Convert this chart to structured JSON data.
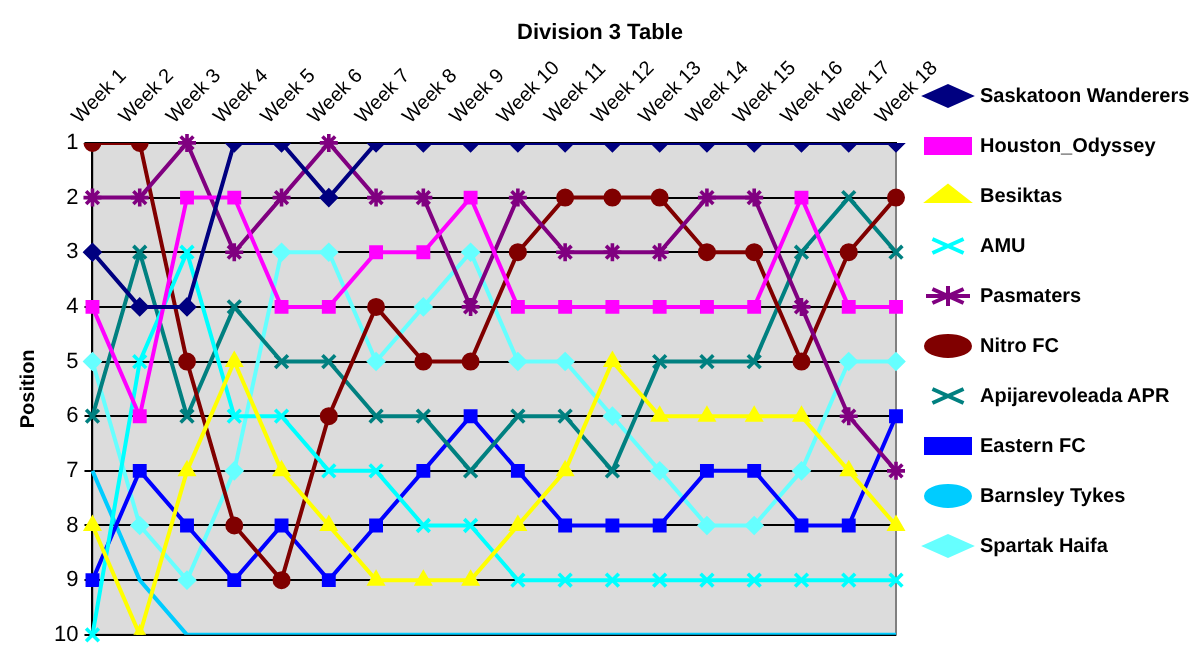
{
  "chart_data": {
    "type": "line",
    "title": "Division 3 Table",
    "ylabel": "Position",
    "categories": [
      "Week 1",
      "Week 2",
      "Week 3",
      "Week 4",
      "Week 5",
      "Week 6",
      "Week 7",
      "Week 8",
      "Week 9",
      "Week 10",
      "Week 11",
      "Week 12",
      "Week 13",
      "Week 14",
      "Week 15",
      "Week 16",
      "Week 17",
      "Week 18"
    ],
    "ylim": [
      10,
      1
    ],
    "yticks": [
      1,
      2,
      3,
      4,
      5,
      6,
      7,
      8,
      9,
      10
    ],
    "grid": "y",
    "legend": "right",
    "series": [
      {
        "name": "Saskatoon Wanderers",
        "color": "#000080",
        "marker": "diamond",
        "values": [
          3,
          4,
          4,
          1,
          1,
          2,
          1,
          1,
          1,
          1,
          1,
          1,
          1,
          1,
          1,
          1,
          1,
          1
        ]
      },
      {
        "name": "Houston_Odyssey",
        "color": "#ff00ff",
        "marker": "square",
        "values": [
          4,
          6,
          2,
          2,
          4,
          4,
          3,
          3,
          2,
          4,
          4,
          4,
          4,
          4,
          4,
          2,
          4,
          4
        ]
      },
      {
        "name": "Besiktas",
        "color": "#ffff00",
        "marker": "triangle",
        "values": [
          8,
          10,
          7,
          5,
          7,
          8,
          9,
          9,
          9,
          8,
          7,
          5,
          6,
          6,
          6,
          6,
          7,
          8
        ]
      },
      {
        "name": "AMU",
        "color": "#00ffff",
        "marker": "cross",
        "values": [
          10,
          5,
          3,
          6,
          6,
          7,
          7,
          8,
          8,
          9,
          9,
          9,
          9,
          9,
          9,
          9,
          9,
          9
        ]
      },
      {
        "name": "Pasmaters",
        "color": "#800080",
        "marker": "star",
        "values": [
          2,
          2,
          1,
          3,
          2,
          1,
          2,
          2,
          4,
          2,
          3,
          3,
          3,
          2,
          2,
          4,
          6,
          7
        ]
      },
      {
        "name": "Nitro FC",
        "color": "#800000",
        "marker": "circle",
        "values": [
          1,
          1,
          5,
          8,
          9,
          6,
          4,
          5,
          5,
          3,
          2,
          2,
          2,
          3,
          3,
          5,
          3,
          2
        ]
      },
      {
        "name": "Apijarevoleada APR",
        "color": "#008080",
        "marker": "cross",
        "values": [
          6,
          3,
          6,
          4,
          5,
          5,
          6,
          6,
          7,
          6,
          6,
          7,
          5,
          5,
          5,
          3,
          2,
          3
        ]
      },
      {
        "name": "Eastern FC",
        "color": "#0000ff",
        "marker": "square",
        "values": [
          9,
          7,
          8,
          9,
          8,
          9,
          8,
          7,
          6,
          7,
          8,
          8,
          8,
          7,
          7,
          8,
          8,
          6
        ]
      },
      {
        "name": "Barnsley Tykes",
        "color": "#00ccff",
        "marker": "none",
        "values": [
          7,
          9,
          10,
          10,
          10,
          10,
          10,
          10,
          10,
          10,
          10,
          10,
          10,
          10,
          10,
          10,
          10,
          10
        ]
      },
      {
        "name": "Spartak Haifa",
        "color": "#66ffff",
        "marker": "diamond",
        "values": [
          5,
          8,
          9,
          7,
          3,
          3,
          5,
          4,
          3,
          5,
          5,
          6,
          7,
          8,
          8,
          7,
          5,
          5
        ]
      }
    ]
  }
}
